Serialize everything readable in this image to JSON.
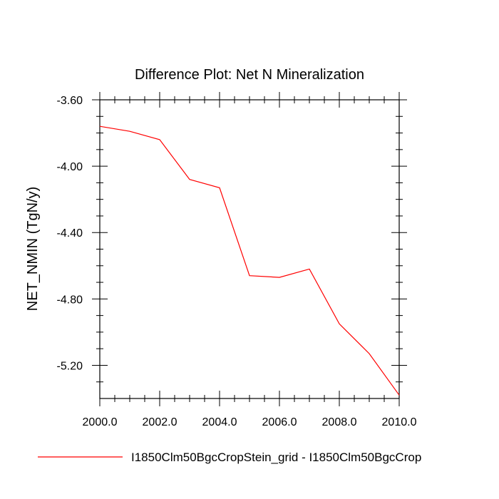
{
  "chart_data": {
    "type": "line",
    "title": "Difference Plot: Net N Mineralization",
    "ylabel": "NET_NMIN  (TgN/y)",
    "xlabel": "",
    "xlim": [
      2000,
      2010
    ],
    "ylim": [
      -5.4,
      -3.6
    ],
    "x_ticks": [
      2000,
      2002,
      2004,
      2006,
      2008,
      2010
    ],
    "x_tick_labels": [
      "2000.0",
      "2002.0",
      "2004.0",
      "2006.0",
      "2008.0",
      "2010.0"
    ],
    "y_ticks": [
      -3.6,
      -4.0,
      -4.4,
      -4.8,
      -5.2
    ],
    "y_tick_labels": [
      "-3.60",
      "-4.00",
      "-4.40",
      "-4.80",
      "-5.20"
    ],
    "grid": false,
    "legend_position": "bottom",
    "series": [
      {
        "name": "I1850Clm50BgcCropStein_grid - I1850Clm50BgcCrop",
        "color": "#ff0000",
        "x": [
          2000,
          2001,
          2002,
          2003,
          2004,
          2005,
          2006,
          2007,
          2008,
          2009,
          2010
        ],
        "y": [
          -3.76,
          -3.79,
          -3.84,
          -4.08,
          -4.13,
          -4.66,
          -4.67,
          -4.62,
          -4.95,
          -5.13,
          -5.38
        ]
      }
    ]
  }
}
